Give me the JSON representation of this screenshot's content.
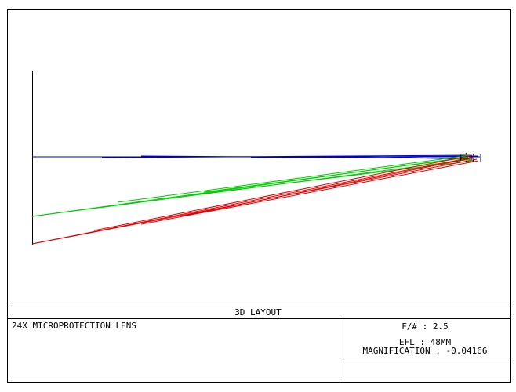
{
  "caption": "3D LAYOUT",
  "lens_name": "24X MICROPROTECTION LENS",
  "specs": [
    "F/# : 2.5",
    "EFL : 48MM",
    "MAGNIFICATION : -0.04166"
  ]
}
